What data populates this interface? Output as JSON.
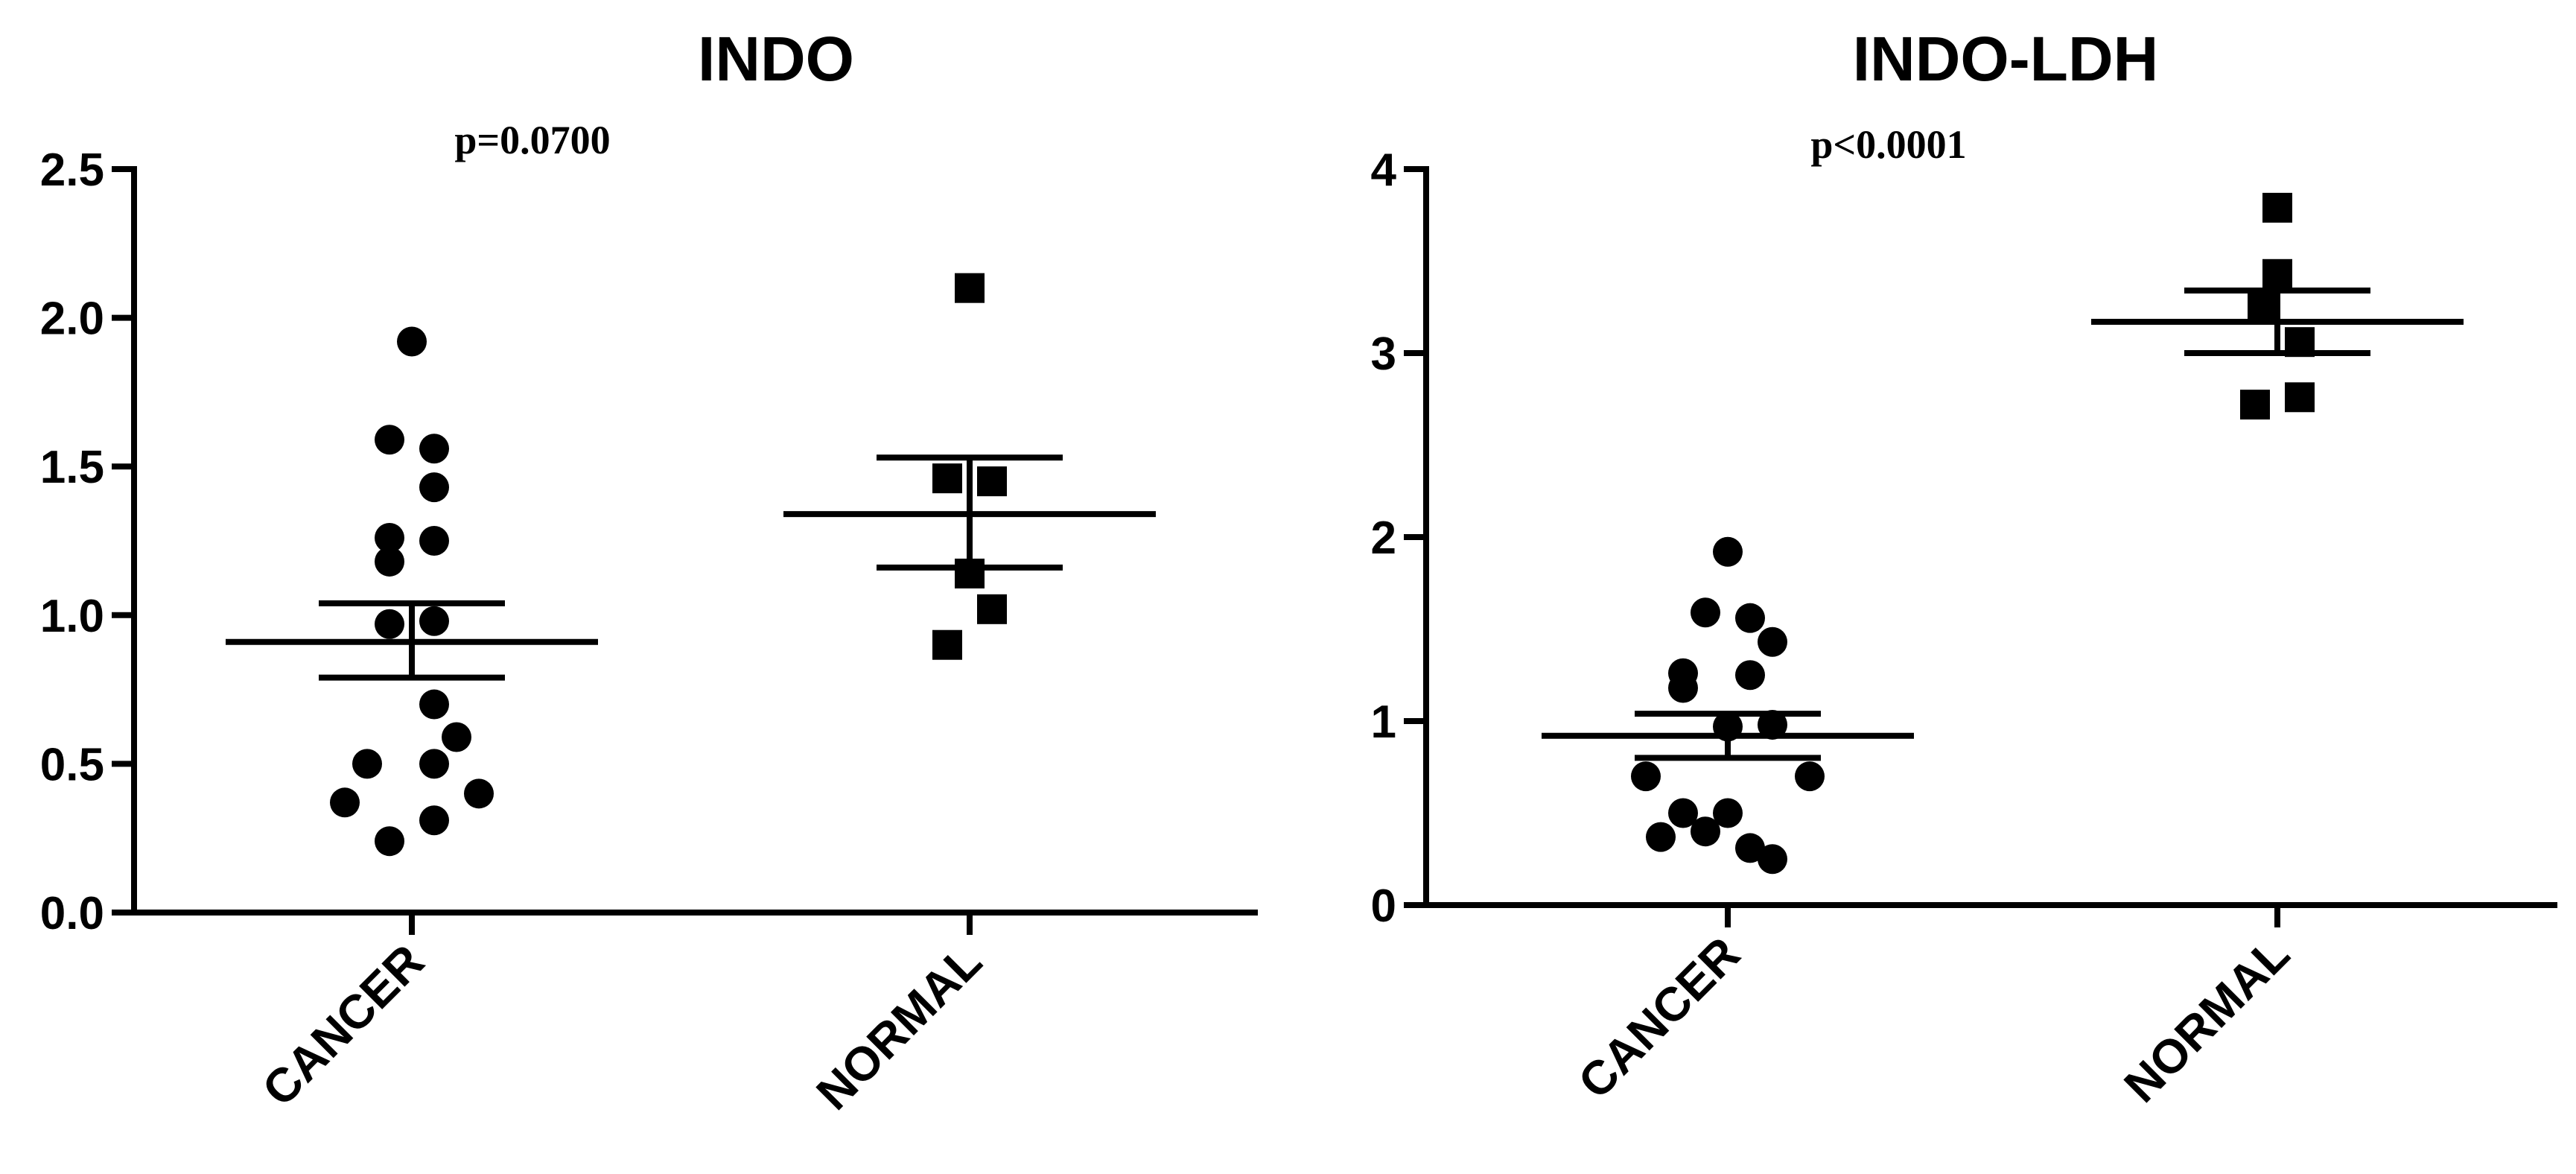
{
  "chart_data": [
    {
      "type": "scatter",
      "title": "INDO",
      "annotation": "p=0.0700",
      "categories": [
        "CANCER",
        "NORMAL"
      ],
      "ylim": [
        0,
        2.5
      ],
      "yticks": [
        "0.0",
        "0.5",
        "1.0",
        "1.5",
        "2.0",
        "2.5"
      ],
      "ytick_values": [
        0,
        0.5,
        1.0,
        1.5,
        2.0,
        2.5
      ],
      "series": [
        {
          "category": "CANCER",
          "marker": "circle",
          "values": [
            1.92,
            1.59,
            1.56,
            1.43,
            1.26,
            1.25,
            1.18,
            0.98,
            0.97,
            0.7,
            0.59,
            0.5,
            0.5,
            0.4,
            0.37,
            0.31,
            0.24
          ],
          "mean": 0.91,
          "sem_low": 0.79,
          "sem_high": 1.04
        },
        {
          "category": "NORMAL",
          "marker": "square",
          "values": [
            2.1,
            1.46,
            1.45,
            1.14,
            1.02,
            0.9
          ],
          "mean": 1.34,
          "sem_low": 1.16,
          "sem_high": 1.53
        }
      ]
    },
    {
      "type": "scatter",
      "title": "INDO-LDH",
      "annotation": "p<0.0001",
      "categories": [
        "CANCER",
        "NORMAL"
      ],
      "ylim": [
        0,
        4
      ],
      "yticks": [
        "0",
        "1",
        "2",
        "3",
        "4"
      ],
      "ytick_values": [
        0,
        1,
        2,
        3,
        4
      ],
      "series": [
        {
          "category": "CANCER",
          "marker": "circle",
          "values": [
            1.92,
            1.59,
            1.56,
            1.43,
            1.26,
            1.25,
            1.18,
            0.98,
            0.97,
            0.7,
            0.7,
            0.5,
            0.5,
            0.4,
            0.37,
            0.31,
            0.25
          ],
          "mean": 0.92,
          "sem_low": 0.8,
          "sem_high": 1.04
        },
        {
          "category": "NORMAL",
          "marker": "square",
          "values": [
            3.79,
            3.43,
            3.25,
            3.06,
            2.76,
            2.72
          ],
          "mean": 3.17,
          "sem_low": 3.0,
          "sem_high": 3.34
        }
      ]
    }
  ]
}
